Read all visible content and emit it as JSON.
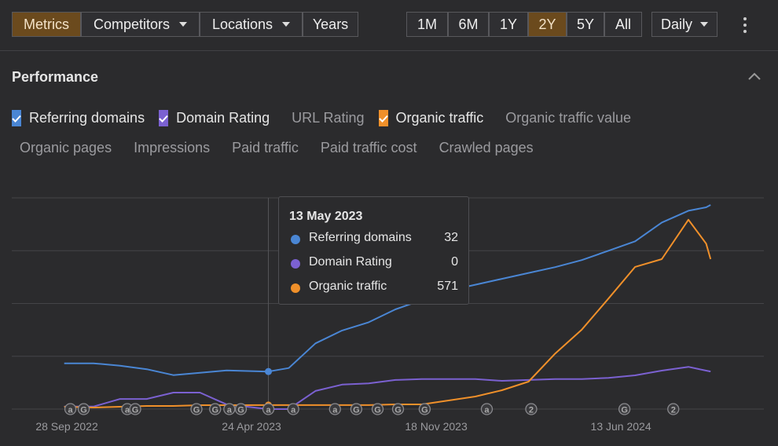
{
  "toolbar": {
    "tabs": [
      "Metrics",
      "Competitors",
      "Locations",
      "Years"
    ],
    "ranges": [
      "1M",
      "6M",
      "1Y",
      "2Y",
      "5Y",
      "All"
    ],
    "interval": "Daily"
  },
  "section": {
    "title": "Performance"
  },
  "checkboxes": [
    {
      "label": "Referring domains",
      "checked": true,
      "color": "#4a86d4"
    },
    {
      "label": "Domain Rating",
      "checked": true,
      "color": "#7b61d1"
    },
    {
      "label": "URL Rating",
      "checked": false
    },
    {
      "label": "Organic traffic",
      "checked": true,
      "color": "#f0902a"
    },
    {
      "label": "Organic traffic value",
      "checked": false
    },
    {
      "label": "Organic pages",
      "checked": false
    },
    {
      "label": "Impressions",
      "checked": false
    },
    {
      "label": "Paid traffic",
      "checked": false
    },
    {
      "label": "Paid traffic cost",
      "checked": false
    },
    {
      "label": "Crawled pages",
      "checked": false
    }
  ],
  "chart_data": {
    "type": "line",
    "x": [
      "2022-09-25",
      "2022-10-28",
      "2022-11-27",
      "2022-12-27",
      "2023-01-26",
      "2023-02-25",
      "2023-03-27",
      "2023-05-13",
      "2023-06-05",
      "2023-07-05",
      "2023-08-04",
      "2023-09-03",
      "2023-10-03",
      "2023-11-02",
      "2023-12-02",
      "2024-01-01",
      "2024-01-31",
      "2024-03-01",
      "2024-03-31",
      "2024-04-30",
      "2024-05-30",
      "2024-06-29",
      "2024-07-29",
      "2024-08-28",
      "2024-09-17",
      "2024-09-22"
    ],
    "xlim": [
      "2022-07-28",
      "2024-11-21"
    ],
    "xticks": [
      {
        "value": "2022-09-28",
        "label": "28 Sep 2022"
      },
      {
        "value": "2023-04-24",
        "label": "24 Apr 2023"
      },
      {
        "value": "2023-11-18",
        "label": "18 Nov 2023"
      },
      {
        "value": "2024-06-13",
        "label": "13 Jun 2024"
      }
    ],
    "series": [
      {
        "name": "Referring domains",
        "color": "#4a86d4",
        "ylim": [
          0,
          180
        ],
        "values": [
          39,
          39,
          37,
          34,
          29,
          31,
          33,
          32,
          35,
          56,
          67,
          74,
          85,
          93,
          101,
          106,
          111,
          116,
          121,
          127,
          135,
          143,
          159,
          169,
          172,
          174
        ]
      },
      {
        "name": "Domain Rating",
        "color": "#7b61d1",
        "ylim": [
          0,
          50
        ],
        "values": [
          0.6,
          0.6,
          2.4,
          2.4,
          3.9,
          3.9,
          1.1,
          0,
          0,
          4.3,
          5.8,
          6.1,
          6.9,
          7.1,
          7.1,
          7.1,
          6.7,
          6.9,
          7.1,
          7.1,
          7.4,
          8.0,
          9.1,
          10,
          9.1,
          8.9
        ]
      },
      {
        "name": "Organic traffic",
        "color": "#f0902a",
        "ylim": [
          0,
          30000
        ],
        "values": [
          330,
          220,
          330,
          450,
          450,
          560,
          560,
          571,
          571,
          571,
          571,
          571,
          670,
          670,
          1230,
          1780,
          2680,
          3900,
          7900,
          11300,
          15700,
          20200,
          21300,
          26900,
          23500,
          21300
        ]
      }
    ],
    "annotations": [
      {
        "date": "2022-10-02",
        "label": "a"
      },
      {
        "date": "2022-10-17",
        "label": "G"
      },
      {
        "date": "2022-12-05",
        "label": "a"
      },
      {
        "date": "2022-12-14",
        "label": "G"
      },
      {
        "date": "2023-02-21",
        "label": "G"
      },
      {
        "date": "2023-03-14",
        "label": "G"
      },
      {
        "date": "2023-03-30",
        "label": "a"
      },
      {
        "date": "2023-04-12",
        "label": "G"
      },
      {
        "date": "2023-05-13",
        "label": "a"
      },
      {
        "date": "2023-06-10",
        "label": "a"
      },
      {
        "date": "2023-07-27",
        "label": "a"
      },
      {
        "date": "2023-08-20",
        "label": "G"
      },
      {
        "date": "2023-09-13",
        "label": "G"
      },
      {
        "date": "2023-10-06",
        "label": "G"
      },
      {
        "date": "2023-11-05",
        "label": "G"
      },
      {
        "date": "2024-01-14",
        "label": "a"
      },
      {
        "date": "2024-03-04",
        "label": "2"
      },
      {
        "date": "2024-06-17",
        "label": "G"
      },
      {
        "date": "2024-08-11",
        "label": "2"
      }
    ],
    "tooltip": {
      "date": "13 May 2023",
      "index": 7,
      "rows": [
        {
          "name": "Referring domains",
          "value": "32"
        },
        {
          "name": "Domain Rating",
          "value": "0"
        },
        {
          "name": "Organic traffic",
          "value": "571"
        }
      ]
    }
  }
}
